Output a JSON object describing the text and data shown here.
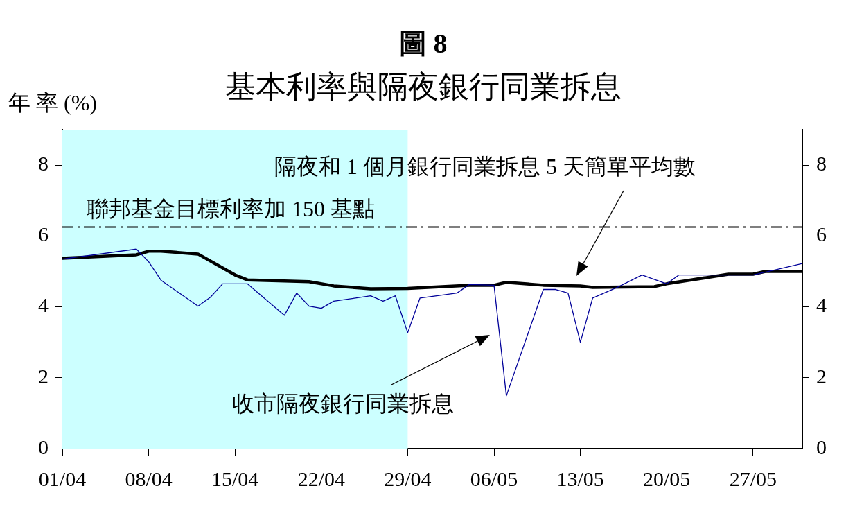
{
  "chart_data": {
    "type": "line",
    "title": "圖 8",
    "subtitle": "基本利率與隔夜銀行同業拆息",
    "ylabel": "年 率 (%)",
    "xlim": [
      "--04-01",
      "--05-31"
    ],
    "xticks": [
      {
        "value": "--04-01",
        "label": "01/04"
      },
      {
        "value": "--04-08",
        "label": "08/04"
      },
      {
        "value": "--04-15",
        "label": "15/04"
      },
      {
        "value": "--04-22",
        "label": "22/04"
      },
      {
        "value": "--04-29",
        "label": "29/04"
      },
      {
        "value": "--05-06",
        "label": "06/05"
      },
      {
        "value": "--05-13",
        "label": "13/05"
      },
      {
        "value": "--05-20",
        "label": "20/05"
      },
      {
        "value": "--05-27",
        "label": "27/05"
      }
    ],
    "ylim": [
      0,
      9
    ],
    "yticks": [
      0,
      2,
      4,
      6,
      8
    ],
    "y2lim": [
      0,
      9
    ],
    "y2ticks": [
      0,
      2,
      4,
      6,
      8
    ],
    "grid": false,
    "legend": false,
    "series": [
      {
        "color": "#000099",
        "x": [
          "--04-01",
          "--04-07",
          "--04-08",
          "--04-09",
          "--04-12",
          "--04-13",
          "--04-14",
          "--04-16",
          "--04-19",
          "--04-20",
          "--04-21",
          "--04-22",
          "--04-23",
          "--04-26",
          "--04-27",
          "--04-28",
          "--04-29",
          "--04-30",
          "--05-03",
          "--05-04",
          "--05-06",
          "--05-07",
          "--05-10",
          "--05-11",
          "--05-12",
          "--05-13",
          "--05-14",
          "--05-16",
          "--05-18",
          "--05-20",
          "--05-21",
          "--05-27",
          "--05-31"
        ],
        "values": [
          5.35,
          5.63,
          5.27,
          4.75,
          4.02,
          4.27,
          4.65,
          4.65,
          3.76,
          4.39,
          4.02,
          3.96,
          4.16,
          4.31,
          4.16,
          4.31,
          3.27,
          4.25,
          4.39,
          4.63,
          4.61,
          1.49,
          4.49,
          4.49,
          4.39,
          3.0,
          4.25,
          4.55,
          4.9,
          4.65,
          4.9,
          4.9,
          5.22
        ]
      },
      {
        "color": "#000000",
        "x": [
          "--04-01",
          "--04-07",
          "--04-08",
          "--04-09",
          "--04-12",
          "--04-15",
          "--04-16",
          "--04-21",
          "--04-23",
          "--04-26",
          "--04-29",
          "--05-04",
          "--05-06",
          "--05-07",
          "--05-10",
          "--05-13",
          "--05-14",
          "--05-19",
          "--05-20",
          "--05-22",
          "--05-25",
          "--05-27",
          "--05-28",
          "--05-31"
        ],
        "values": [
          5.37,
          5.47,
          5.57,
          5.57,
          5.49,
          4.9,
          4.76,
          4.71,
          4.59,
          4.51,
          4.52,
          4.61,
          4.61,
          4.69,
          4.61,
          4.59,
          4.55,
          4.57,
          4.65,
          4.76,
          4.92,
          4.92,
          5.0,
          5.0
        ]
      }
    ],
    "bands": [
      {
        "axis": "x",
        "from": "--04-01",
        "to": "--04-29",
        "color": "#ccffff"
      }
    ],
    "ref_lines": [
      {
        "axis": "y",
        "value": 6.25,
        "label": "聯邦基金目標利率加 150 基點",
        "color": "#000000",
        "line_style": "dashed"
      }
    ],
    "annotations": [
      "隔夜和 1 個月銀行同業拆息 5 天簡單平均數",
      "收市隔夜銀行同業拆息"
    ]
  }
}
